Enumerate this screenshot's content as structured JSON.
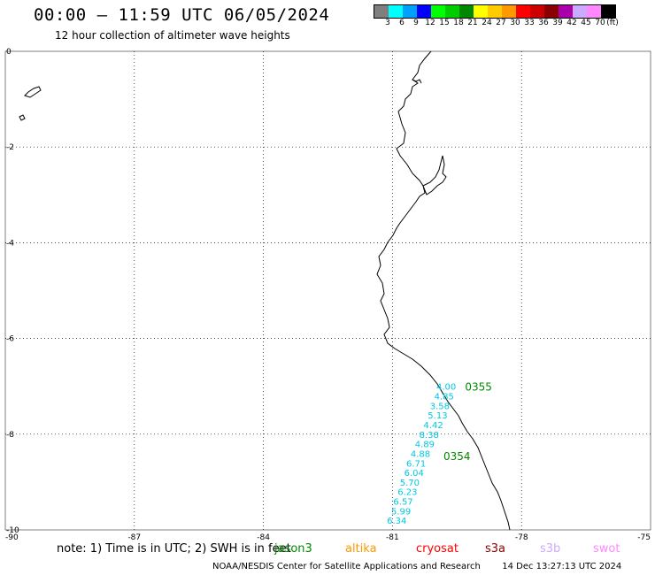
{
  "header": {
    "title": "00:00 – 11:59 UTC 06/05/2024",
    "subtitle": "12 hour collection of altimeter wave heights"
  },
  "legend": {
    "unit": "(ft)",
    "swatches": [
      {
        "color": "#7f7f7f",
        "label": "3"
      },
      {
        "color": "#00ffff",
        "label": "6"
      },
      {
        "color": "#00a0ff",
        "label": "9"
      },
      {
        "color": "#0000ff",
        "label": "12"
      },
      {
        "color": "#00ff00",
        "label": "15"
      },
      {
        "color": "#00cc00",
        "label": "18"
      },
      {
        "color": "#008800",
        "label": "21"
      },
      {
        "color": "#ffff00",
        "label": "24"
      },
      {
        "color": "#ffcc00",
        "label": "27"
      },
      {
        "color": "#ff9900",
        "label": "30"
      },
      {
        "color": "#ff0000",
        "label": "33"
      },
      {
        "color": "#cc0000",
        "label": "36"
      },
      {
        "color": "#880000",
        "label": "39"
      },
      {
        "color": "#aa00aa",
        "label": "42"
      },
      {
        "color": "#ccaaff",
        "label": "45"
      },
      {
        "color": "#ff88ff",
        "label": "70"
      },
      {
        "color": "#000000",
        "label": ""
      }
    ]
  },
  "map": {
    "lon_range": [
      -90,
      -75
    ],
    "lat_range": [
      -10,
      0
    ],
    "lon_ticks": [
      "-90",
      "-87",
      "-84",
      "-81",
      "-78",
      "-75"
    ],
    "lat_ticks": [
      "0",
      "-2",
      "-4",
      "-6",
      "-8",
      "-10"
    ],
    "grid": true,
    "wave_heights": [
      {
        "lon": -79.75,
        "lat": -7.0,
        "value": "4.00"
      },
      {
        "lon": -79.8,
        "lat": -7.2,
        "value": "4.85"
      },
      {
        "lon": -79.9,
        "lat": -7.4,
        "value": "3.58"
      },
      {
        "lon": -79.95,
        "lat": -7.6,
        "value": "5.13"
      },
      {
        "lon": -80.05,
        "lat": -7.8,
        "value": "4.42"
      },
      {
        "lon": -80.15,
        "lat": -8.0,
        "value": "8.38"
      },
      {
        "lon": -80.25,
        "lat": -8.2,
        "value": "4.89"
      },
      {
        "lon": -80.35,
        "lat": -8.4,
        "value": "4.88"
      },
      {
        "lon": -80.45,
        "lat": -8.6,
        "value": "6.71"
      },
      {
        "lon": -80.5,
        "lat": -8.8,
        "value": "6.04"
      },
      {
        "lon": -80.6,
        "lat": -9.0,
        "value": "5.70"
      },
      {
        "lon": -80.65,
        "lat": -9.2,
        "value": "6.23"
      },
      {
        "lon": -80.75,
        "lat": -9.4,
        "value": "6.57"
      },
      {
        "lon": -80.8,
        "lat": -9.6,
        "value": "5.99"
      },
      {
        "lon": -80.9,
        "lat": -9.8,
        "value": "6.34"
      }
    ],
    "track_labels": [
      {
        "lon": -79.0,
        "lat": -7.0,
        "text": "0355",
        "color": "#008800"
      },
      {
        "lon": -79.5,
        "lat": -8.45,
        "text": "0354",
        "color": "#008800"
      }
    ],
    "wave_color": "#00c8e0"
  },
  "footer": {
    "note": "note: 1) Time is in UTC; 2) SWH is in feet",
    "satellites": [
      {
        "name": "jason3",
        "color": "#008800"
      },
      {
        "name": "altika",
        "color": "#ff9900"
      },
      {
        "name": "cryosat",
        "color": "#ff0000"
      },
      {
        "name": "s3a",
        "color": "#880000"
      },
      {
        "name": "s3b",
        "color": "#ccaaff"
      },
      {
        "name": "swot",
        "color": "#ff88ff"
      }
    ],
    "credit": "NOAA/NESDIS Center for Satellite Applications and Research",
    "timestamp": "14 Dec 13:27:13 UTC 2024"
  }
}
